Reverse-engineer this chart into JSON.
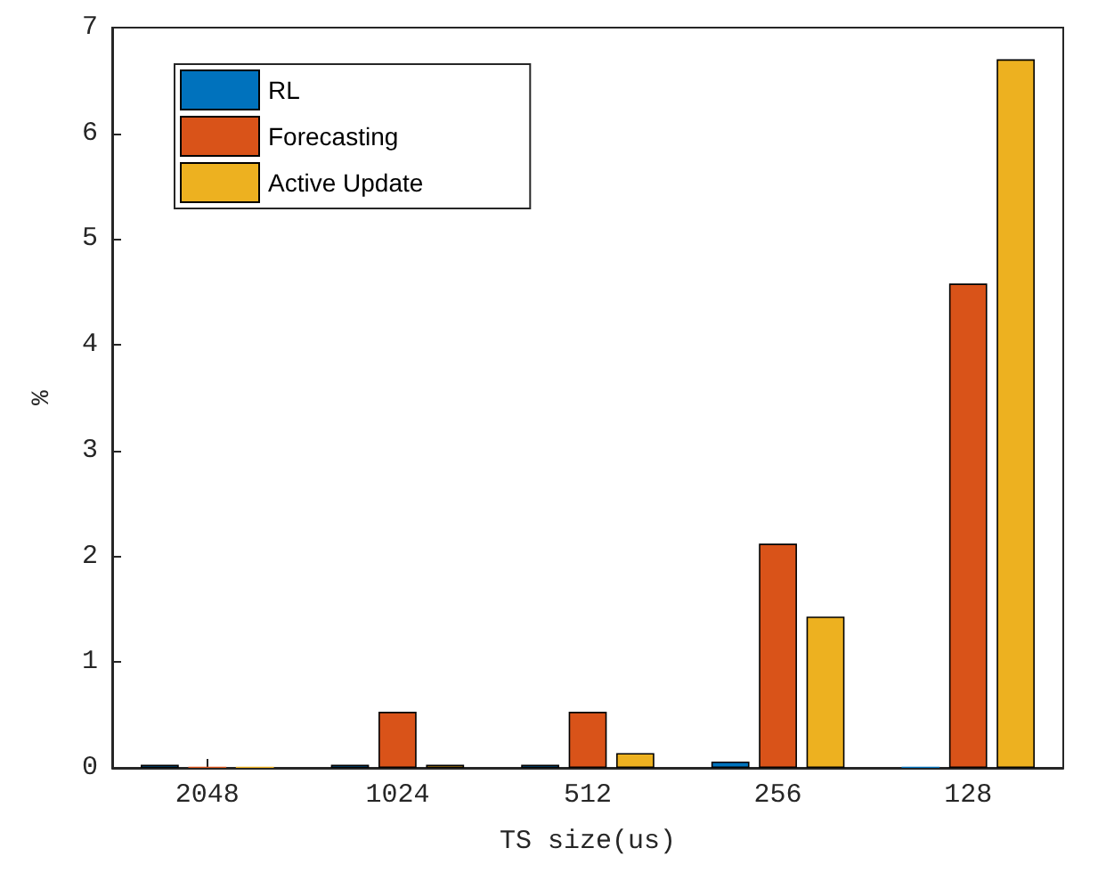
{
  "chart_data": {
    "type": "bar",
    "xlabel": "TS size(us)",
    "ylabel": "%",
    "categories": [
      "2048",
      "1024",
      "512",
      "256",
      "128"
    ],
    "series": [
      {
        "name": "RL",
        "color": "#0072bd",
        "values": [
          0.03,
          0.03,
          0.03,
          0.06,
          0.01
        ]
      },
      {
        "name": "Forecasting",
        "color": "#d95319",
        "values": [
          0.01,
          0.53,
          0.53,
          2.12,
          4.58
        ]
      },
      {
        "name": "Active Update",
        "color": "#edb120",
        "values": [
          0.01,
          0.03,
          0.14,
          1.43,
          6.7
        ]
      }
    ],
    "ylim": [
      0,
      7
    ],
    "yticks": [
      0,
      1,
      2,
      3,
      4,
      5,
      6,
      7
    ],
    "grid": false,
    "legend": "top left"
  }
}
